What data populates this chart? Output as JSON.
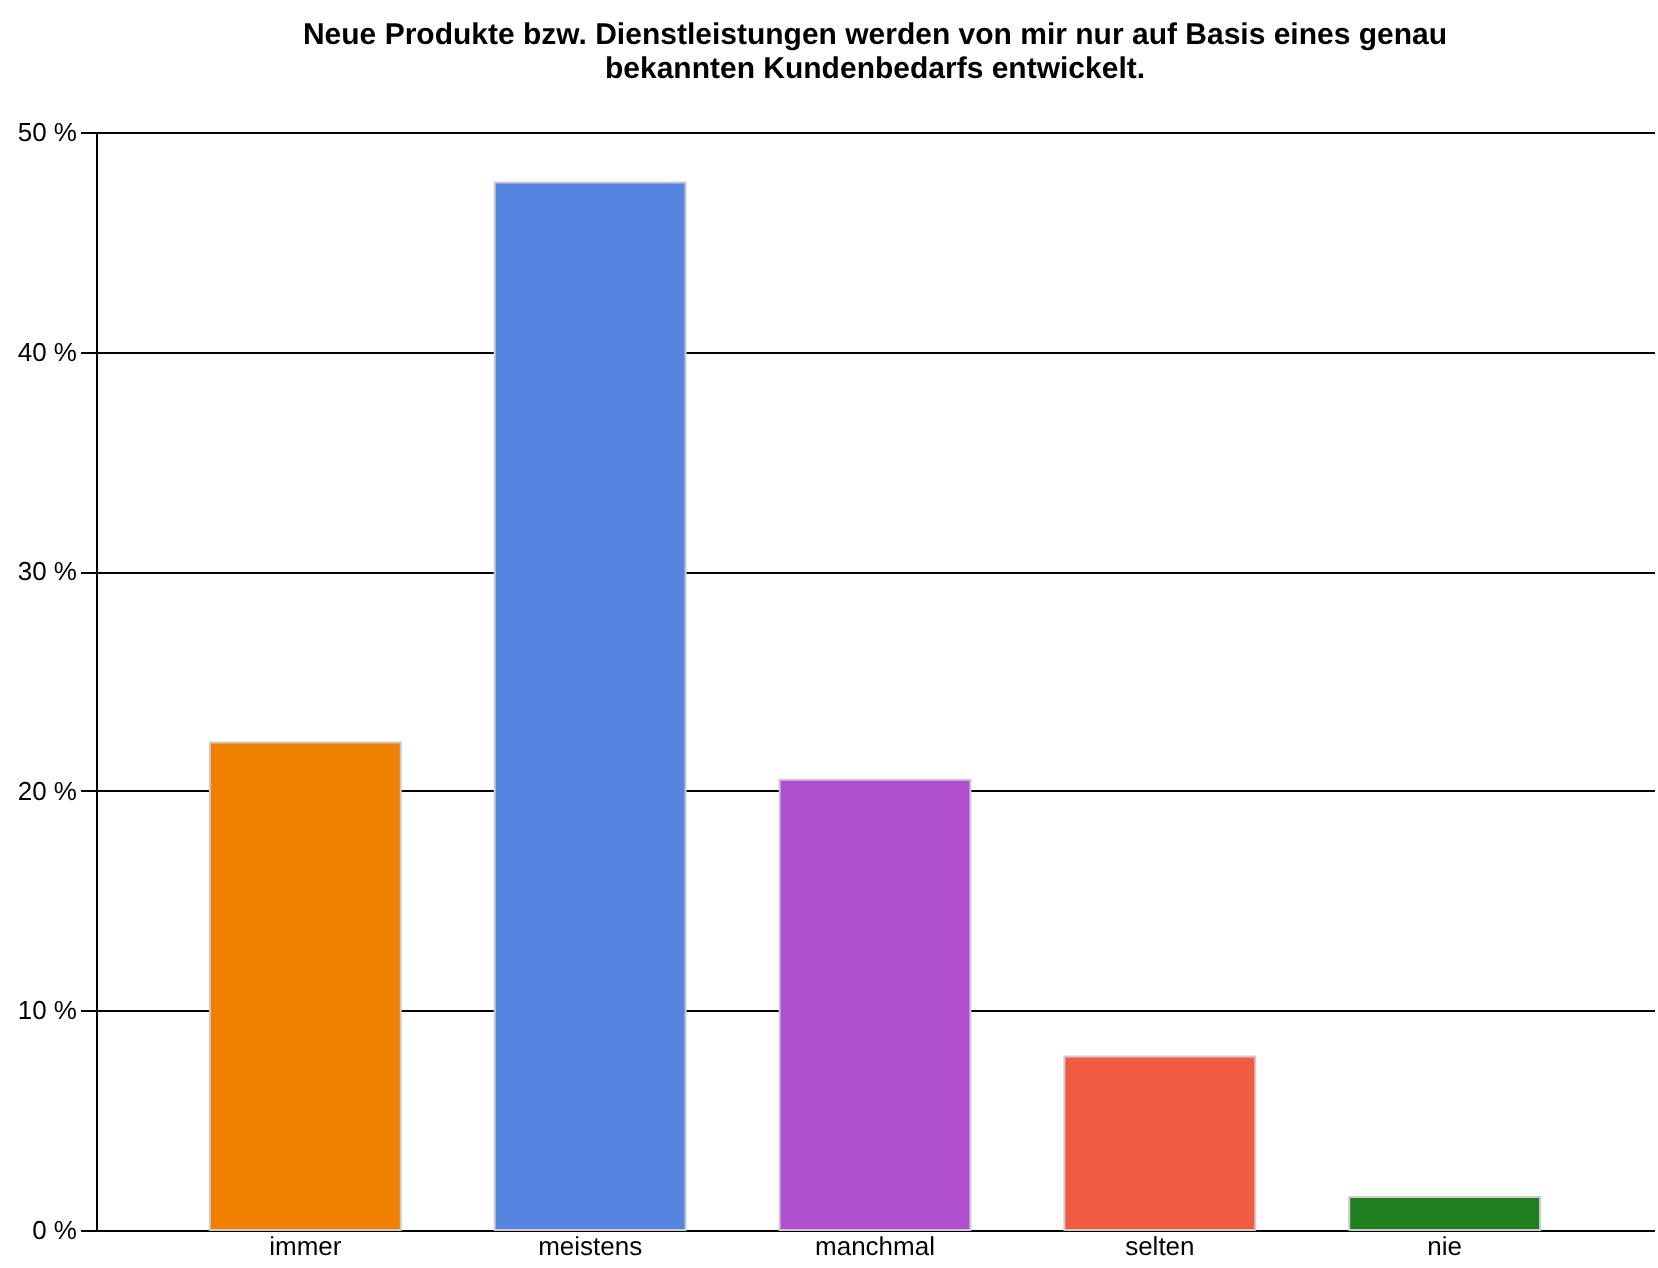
{
  "chart_data": {
    "type": "bar",
    "title": "Neue Produkte bzw. Dienstleistungen werden von mir nur auf Basis eines genau bekannten Kundenbedarfs entwickelt.",
    "categories": [
      "immer",
      "meistens",
      "manchmal",
      "selten",
      "nie"
    ],
    "values": [
      22.2,
      47.7,
      20.5,
      7.9,
      1.5
    ],
    "colors": [
      "#f08000",
      "#5585e0",
      "#b050d0",
      "#f05a40",
      "#208020"
    ],
    "ylim": [
      0,
      50
    ],
    "yticks": [
      {
        "value": 0,
        "label": "0 %"
      },
      {
        "value": 10,
        "label": "10 %"
      },
      {
        "value": 20,
        "label": "20 %"
      },
      {
        "value": 30,
        "label": "30 %"
      },
      {
        "value": 40,
        "label": "40 %"
      },
      {
        "value": 50,
        "label": "50 %"
      }
    ],
    "grid": "y"
  }
}
